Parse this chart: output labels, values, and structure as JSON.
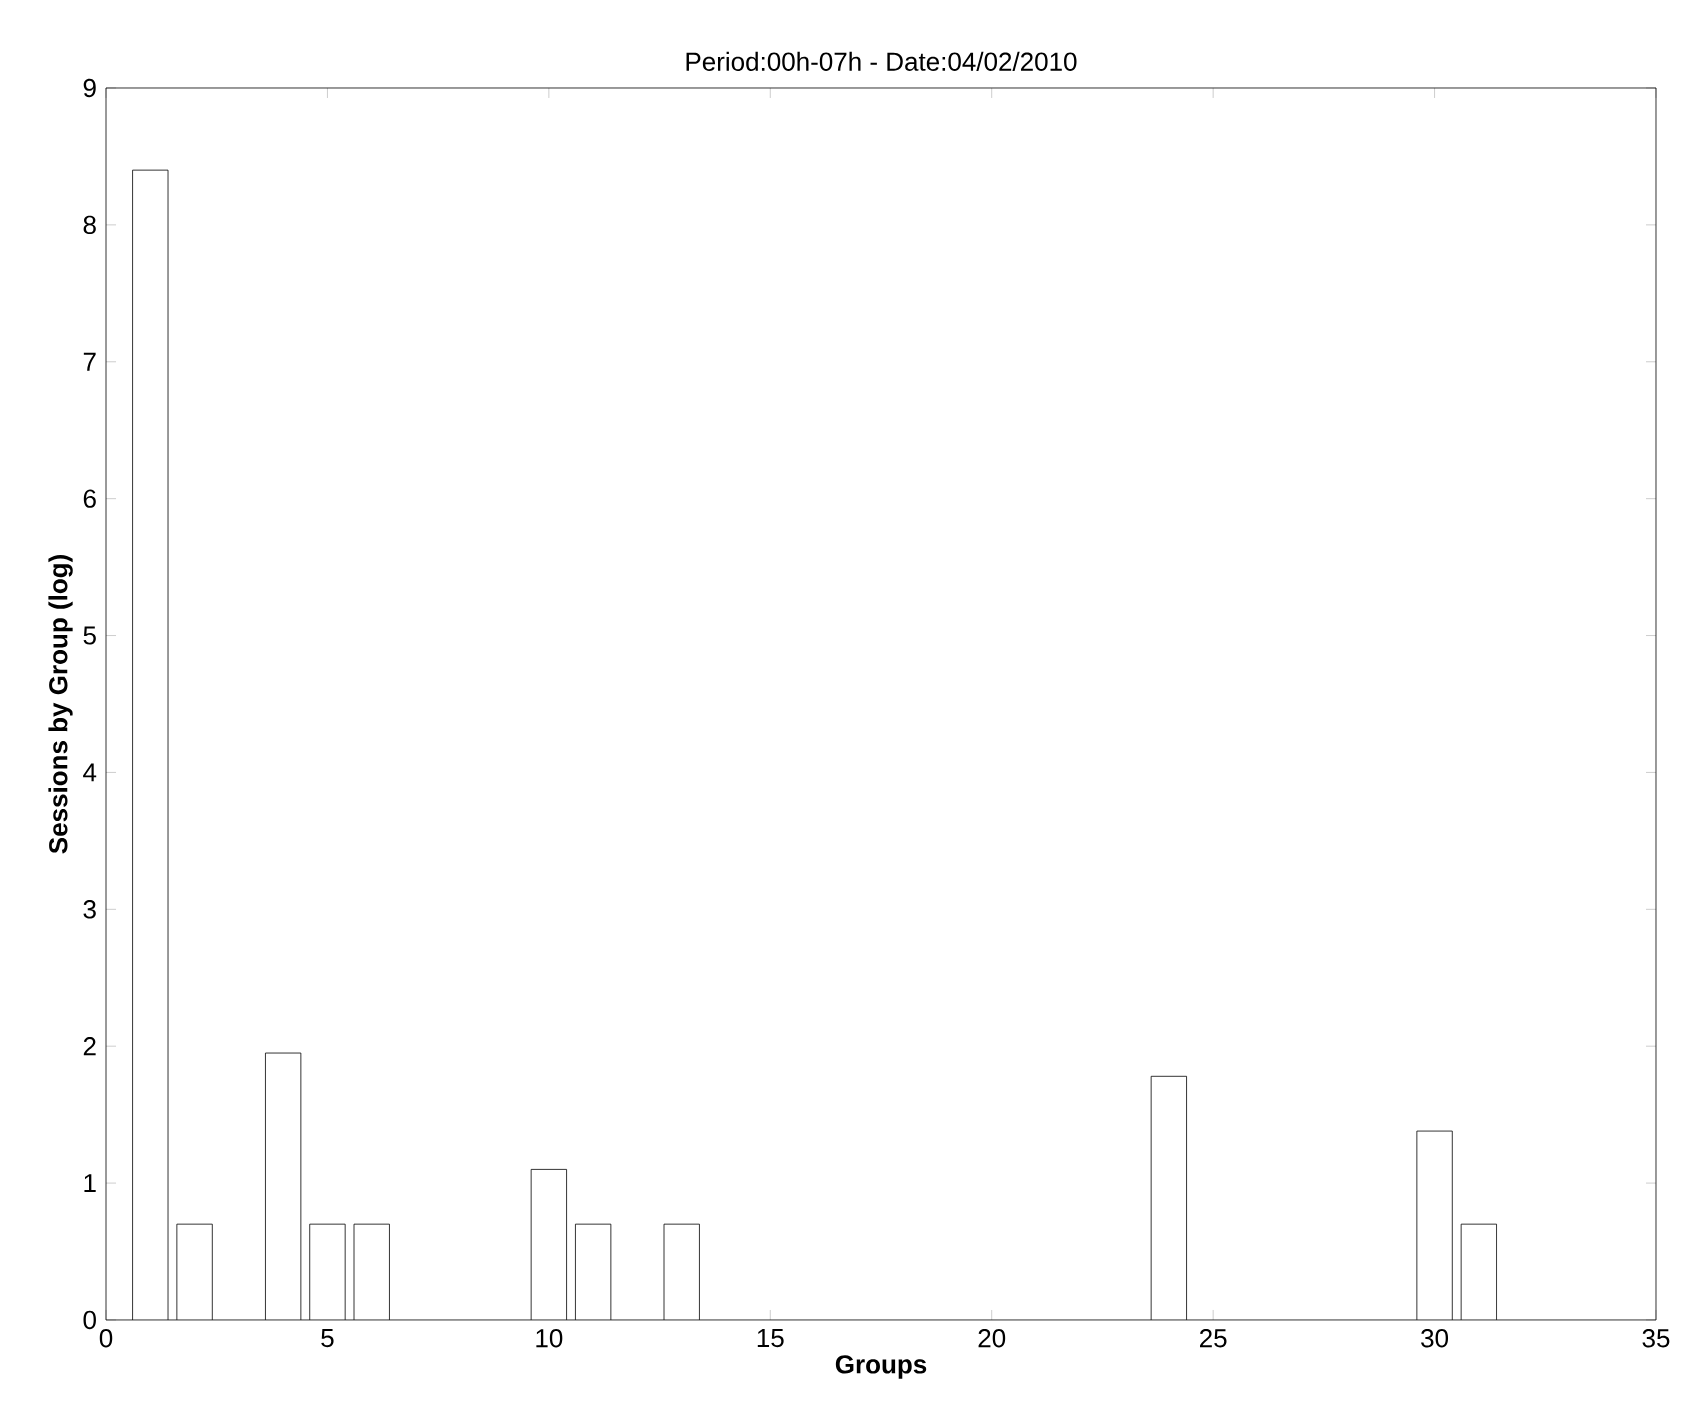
{
  "chart_data": {
    "type": "bar",
    "title": "Period:00h-07h - Date:04/02/2010",
    "xlabel": "Groups",
    "ylabel": "Sessions by Group (log)",
    "x": [
      1,
      2,
      4,
      5,
      6,
      10,
      11,
      13,
      24,
      30,
      31
    ],
    "values": [
      8.4,
      0.7,
      1.95,
      0.7,
      0.7,
      1.1,
      0.7,
      0.7,
      1.78,
      1.38,
      0.7
    ],
    "color": "#ffffff",
    "xlim": [
      0,
      35
    ],
    "xticks": [
      0,
      5,
      10,
      15,
      20,
      25,
      30,
      35
    ],
    "ylim": [
      0,
      9
    ],
    "yticks": [
      0,
      1,
      2,
      3,
      4,
      5,
      6,
      7,
      8,
      9
    ],
    "grid": false
  }
}
